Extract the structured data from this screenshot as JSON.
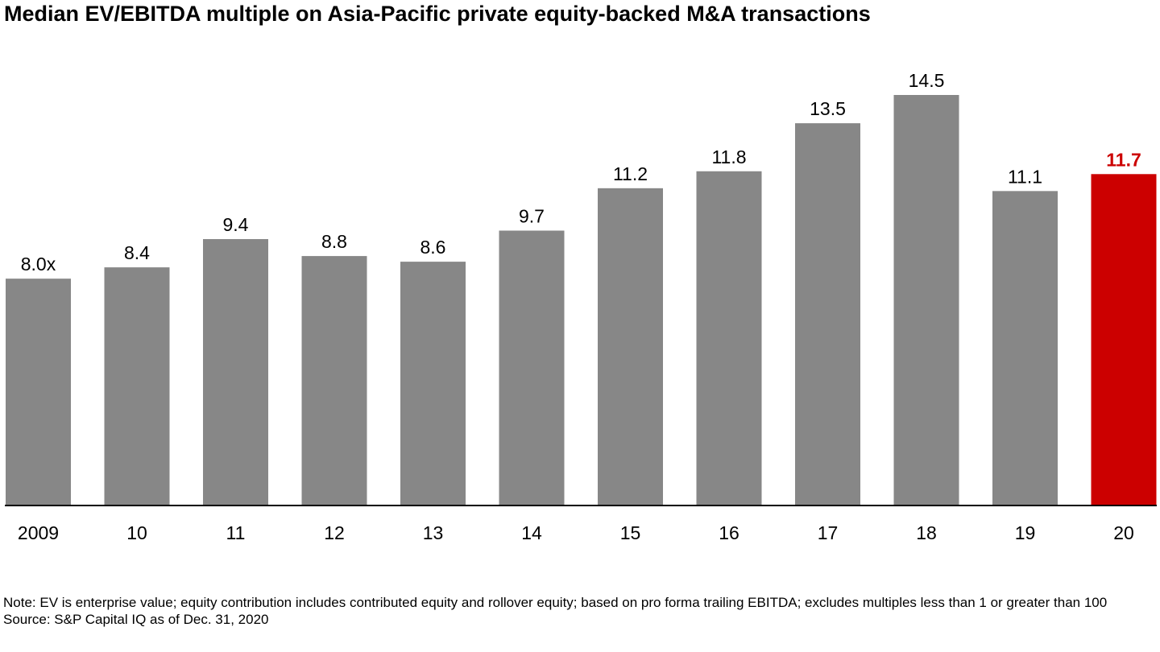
{
  "title": "Median EV/EBITDA multiple on Asia-Pacific private equity-backed M&A transactions",
  "note": "Note: EV is enterprise value; equity contribution includes contributed equity and rollover equity; based on pro forma trailing EBITDA; excludes multiples less than 1 or greater than 100",
  "source": "Source: S&P Capital IQ as of Dec. 31, 2020",
  "colors": {
    "bar": "#878787",
    "highlight": "#cc0000",
    "axis": "#000000"
  },
  "chart_data": {
    "type": "bar",
    "categories": [
      "2009",
      "10",
      "11",
      "12",
      "13",
      "14",
      "15",
      "16",
      "17",
      "18",
      "19",
      "20"
    ],
    "values": [
      8.0,
      8.4,
      9.4,
      8.8,
      8.6,
      9.7,
      11.2,
      11.8,
      13.5,
      14.5,
      11.1,
      11.7
    ],
    "data_labels": [
      "8.0x",
      "8.4",
      "9.4",
      "8.8",
      "8.6",
      "9.7",
      "11.2",
      "11.8",
      "13.5",
      "14.5",
      "11.1",
      "11.7"
    ],
    "highlight_index": 11,
    "title": "Median EV/EBITDA multiple on Asia-Pacific private equity-backed M&A transactions",
    "xlabel": "",
    "ylabel": "",
    "ylim": [
      0,
      14.5
    ],
    "grid": false,
    "legend": "none"
  }
}
